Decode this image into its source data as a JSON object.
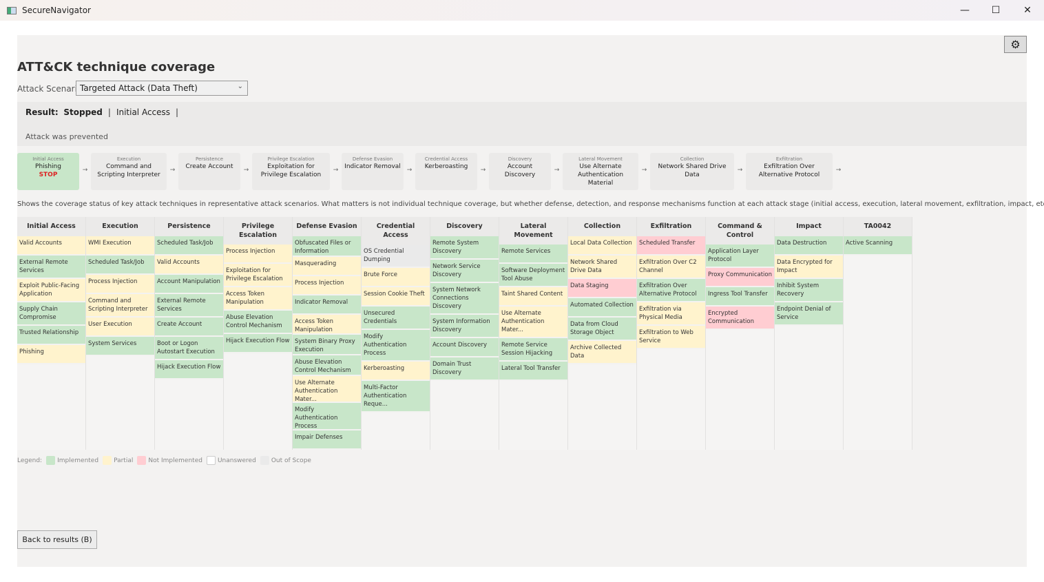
{
  "window": {
    "title": "SecureNavigator",
    "minimize": "—",
    "maximize": "☐",
    "close": "✕"
  },
  "page": {
    "title": "ATT&CK technique coverage",
    "scenario_label": "Attack Scenario:",
    "scenario_value": "Targeted Attack (Data Theft)",
    "settings_icon": "gear-icon"
  },
  "result": {
    "label": "Result:",
    "status": "Stopped",
    "stage": "Initial Access",
    "sep": "|",
    "message": "Attack was prevented"
  },
  "chain": [
    {
      "tactic": "Initial Access",
      "technique": "Phishing",
      "stop": "STOP"
    },
    {
      "tactic": "Execution",
      "technique": "Command and Scripting Interpreter"
    },
    {
      "tactic": "Persistence",
      "technique": "Create Account"
    },
    {
      "tactic": "Privilege Escalation",
      "technique": "Exploitation for Privilege Escalation"
    },
    {
      "tactic": "Defense Evasion",
      "technique": "Indicator Removal"
    },
    {
      "tactic": "Credential Access",
      "technique": "Kerberoasting"
    },
    {
      "tactic": "Discovery",
      "technique": "Account Discovery"
    },
    {
      "tactic": "Lateral Movement",
      "technique": "Use Alternate Authentication Material"
    },
    {
      "tactic": "Collection",
      "technique": "Network Shared Drive Data"
    },
    {
      "tactic": "Exfiltration",
      "technique": "Exfiltration Over Alternative Protocol"
    }
  ],
  "arrow": "→",
  "description": "Shows the coverage status of key attack techniques in representative attack scenarios. What matters is not individual technique coverage, but whether defense, detection, and response mechanisms function at each attack stage (initial access, execution, lateral movement, exfiltration, impact, etc.).",
  "matrix": [
    {
      "tactic": "Initial Access",
      "cells": [
        [
          "Valid Accounts",
          "P"
        ],
        [
          "External Remote Services",
          "I"
        ],
        [
          "Exploit Public-Facing Application",
          "P"
        ],
        [
          "Supply Chain Compromise",
          "I"
        ],
        [
          "Trusted Relationship",
          "I"
        ],
        [
          "Phishing",
          "P"
        ]
      ]
    },
    {
      "tactic": "Execution",
      "cells": [
        [
          "WMI Execution",
          "P"
        ],
        [
          "Scheduled Task/Job",
          "I"
        ],
        [
          "Process Injection",
          "P"
        ],
        [
          "Command and Scripting Interpreter",
          "P"
        ],
        [
          "User Execution",
          "P"
        ],
        [
          "System Services",
          "I"
        ]
      ]
    },
    {
      "tactic": "Persistence",
      "cells": [
        [
          "Scheduled Task/Job",
          "I"
        ],
        [
          "Valid Accounts",
          "P"
        ],
        [
          "Account Manipulation",
          "I"
        ],
        [
          "External Remote Services",
          "I"
        ],
        [
          "Create Account",
          "I"
        ],
        [
          "Boot or Logon Autostart Execution",
          "I"
        ],
        [
          "Hijack Execution Flow",
          "I"
        ]
      ]
    },
    {
      "tactic": "Privilege Escalation",
      "cells": [
        [
          "Process Injection",
          "P"
        ],
        [
          "Exploitation for Privilege Escalation",
          "P"
        ],
        [
          "Access Token Manipulation",
          "P"
        ],
        [
          "Abuse Elevation Control Mechanism",
          "I"
        ],
        [
          "Hijack Execution Flow",
          "I"
        ]
      ]
    },
    {
      "tactic": "Defense Evasion",
      "cells": [
        [
          "Obfuscated Files or Information",
          "I"
        ],
        [
          "Masquerading",
          "P"
        ],
        [
          "Process Injection",
          "P"
        ],
        [
          "Indicator Removal",
          "I"
        ],
        [
          "Access Token Manipulation",
          "P"
        ],
        [
          "System Binary Proxy Execution",
          "I"
        ],
        [
          "Abuse Elevation Control Mechanism",
          "I"
        ],
        [
          "Use Alternate Authentication Mater...",
          "P"
        ],
        [
          "Modify Authentication Process",
          "I"
        ],
        [
          "Impair Defenses",
          "I"
        ]
      ]
    },
    {
      "tactic": "Credential Access",
      "cells": [
        [
          "OS Credential Dumping",
          "O"
        ],
        [
          "Brute Force",
          "P"
        ],
        [
          "Session Cookie Theft",
          "P"
        ],
        [
          "Unsecured Credentials",
          "I"
        ],
        [
          "Modify Authentication Process",
          "I"
        ],
        [
          "Kerberoasting",
          "P"
        ],
        [
          "Multi-Factor Authentication Reque...",
          "I"
        ]
      ]
    },
    {
      "tactic": "Discovery",
      "cells": [
        [
          "Remote System Discovery",
          "I"
        ],
        [
          "Network Service Discovery",
          "I"
        ],
        [
          "System Network Connections Discovery",
          "I"
        ],
        [
          "System Information Discovery",
          "I"
        ],
        [
          "Account Discovery",
          "I"
        ],
        [
          "Domain Trust Discovery",
          "I"
        ]
      ]
    },
    {
      "tactic": "Lateral Movement",
      "cells": [
        [
          "Remote Services",
          "I"
        ],
        [
          "Software Deployment Tool Abuse",
          "I"
        ],
        [
          "Taint Shared Content",
          "P"
        ],
        [
          "Use Alternate Authentication Mater...",
          "P"
        ],
        [
          "Remote Service Session Hijacking",
          "I"
        ],
        [
          "Lateral Tool Transfer",
          "I"
        ]
      ]
    },
    {
      "tactic": "Collection",
      "cells": [
        [
          "Local Data Collection",
          "P"
        ],
        [
          "Network Shared Drive Data",
          "P"
        ],
        [
          "Data Staging",
          "N"
        ],
        [
          "Automated Collection",
          "I"
        ],
        [
          "Data from Cloud Storage Object",
          "I"
        ],
        [
          "Archive Collected Data",
          "P"
        ]
      ]
    },
    {
      "tactic": "Exfiltration",
      "cells": [
        [
          "Scheduled Transfer",
          "N"
        ],
        [
          "Exfiltration Over C2 Channel",
          "P"
        ],
        [
          "Exfiltration Over Alternative Protocol",
          "I"
        ],
        [
          "Exfiltration via Physical Media",
          "P"
        ],
        [
          "Exfiltration to Web Service",
          "P"
        ]
      ]
    },
    {
      "tactic": "Command & Control",
      "cells": [
        [
          "Application Layer Protocol",
          "I"
        ],
        [
          "Proxy Communication",
          "N"
        ],
        [
          "Ingress Tool Transfer",
          "I"
        ],
        [
          "Encrypted Communication",
          "N"
        ]
      ]
    },
    {
      "tactic": "Impact",
      "cells": [
        [
          "Data Destruction",
          "I"
        ],
        [
          "Data Encrypted for Impact",
          "P"
        ],
        [
          "Inhibit System Recovery",
          "I"
        ],
        [
          "Endpoint Denial of Service",
          "I"
        ]
      ]
    },
    {
      "tactic": "TA0042",
      "cells": [
        [
          "Active Scanning",
          "I"
        ]
      ]
    }
  ],
  "legend": {
    "label": "Legend:",
    "items": [
      {
        "code": "I",
        "label": "Implemented",
        "color": "#c8e6c9"
      },
      {
        "code": "P",
        "label": "Partial",
        "color": "#fff3cd"
      },
      {
        "code": "N",
        "label": "Not Implemented",
        "color": "#ffcdd2"
      },
      {
        "code": "U",
        "label": "Unanswered",
        "color": "#ffffff"
      },
      {
        "code": "O",
        "label": "Out of Scope",
        "color": "#eaeaea"
      }
    ]
  },
  "back_button": "Back to results (B)"
}
